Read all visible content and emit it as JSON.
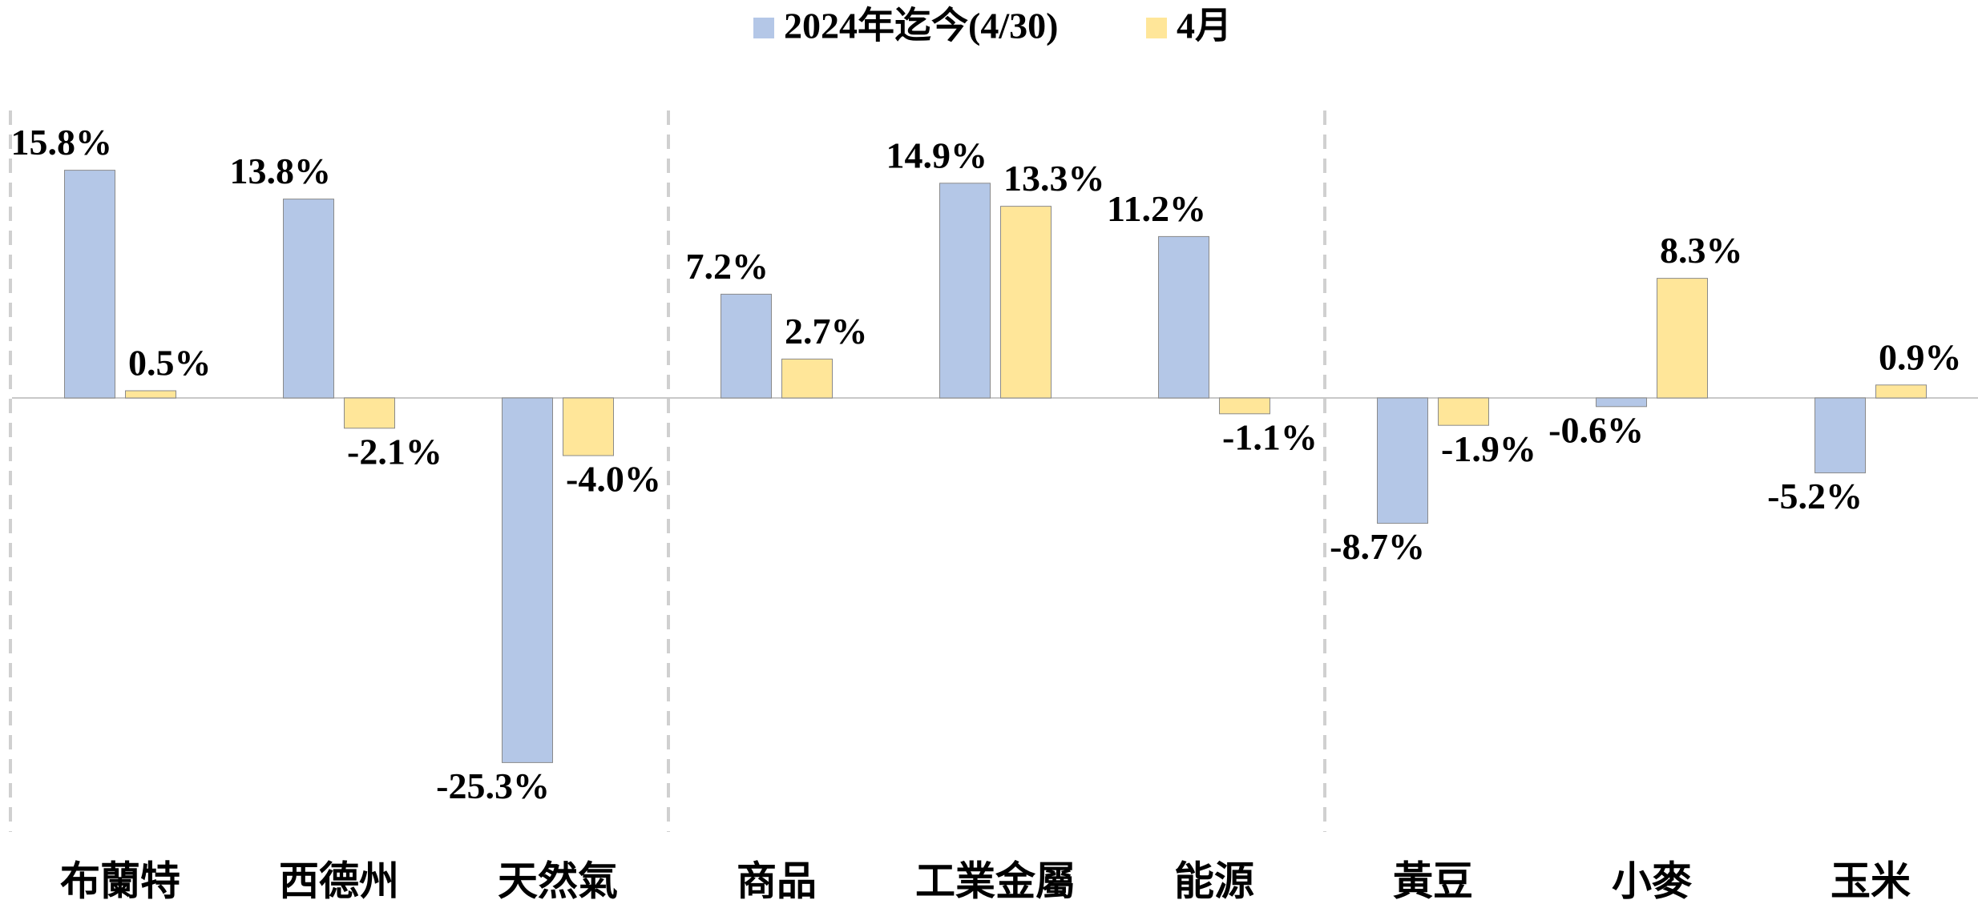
{
  "chart_data": {
    "type": "bar",
    "categories": [
      "布蘭特",
      "西德州",
      "天然氣",
      "商品",
      "工業金屬",
      "能源",
      "黃豆",
      "小麥",
      "玉米"
    ],
    "series": [
      {
        "name": "2024年迄今(4/30)",
        "color": "#b4c7e7",
        "values": [
          15.8,
          13.8,
          -25.3,
          7.2,
          14.9,
          11.2,
          -8.7,
          -0.6,
          -5.2
        ],
        "value_labels": [
          "15.8%",
          "13.8%",
          "-25.3%",
          "7.2%",
          "14.9%",
          "11.2%",
          "-8.7%",
          "-0.6%",
          "-5.2%"
        ]
      },
      {
        "name": "4月",
        "color": "#ffe699",
        "values": [
          0.5,
          -2.1,
          -4.0,
          2.7,
          13.3,
          -1.1,
          -1.9,
          8.3,
          0.9
        ],
        "value_labels": [
          "0.5%",
          "-2.1%",
          "-4.0%",
          "2.7%",
          "13.3%",
          "-1.1%",
          "-1.9%",
          "8.3%",
          "0.9%"
        ]
      }
    ]
  }
}
